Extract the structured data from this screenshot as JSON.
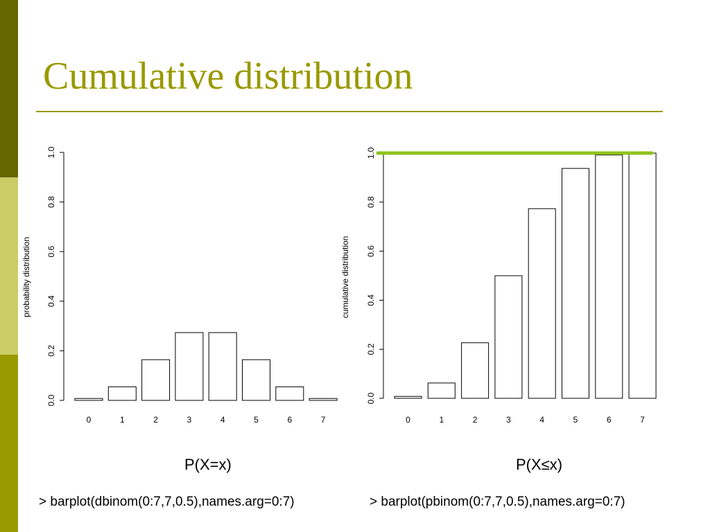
{
  "slide": {
    "title": "Cumulative distribution",
    "colors": {
      "accent": "#999900",
      "sidebar_dark": "#666600",
      "sidebar_light": "#cccc66",
      "sidebar_mid": "#999900",
      "rule": "#999900",
      "highlight_line": "#8fc31f"
    }
  },
  "captions": {
    "left": "P(X=x)",
    "right": "P(X≤x)"
  },
  "code": {
    "left": "> barplot(dbinom(0:7,7,0.5),names.arg=0:7)",
    "right": "> barplot(pbinom(0:7,7,0.5),names.arg=0:7)"
  },
  "chart_data": [
    {
      "type": "bar",
      "categories": [
        "0",
        "1",
        "2",
        "3",
        "4",
        "5",
        "6",
        "7"
      ],
      "values": [
        0.0078,
        0.0547,
        0.1641,
        0.2734,
        0.2734,
        0.1641,
        0.0547,
        0.0078
      ],
      "ylabel": "probability distribution",
      "xlabel": "",
      "ylim": [
        0,
        1
      ],
      "yticks": [
        "0.0",
        "0.2",
        "0.4",
        "0.6",
        "0.8",
        "1.0"
      ],
      "grid": false
    },
    {
      "type": "bar",
      "categories": [
        "0",
        "1",
        "2",
        "3",
        "4",
        "5",
        "6",
        "7"
      ],
      "values": [
        0.0078,
        0.0625,
        0.2266,
        0.5,
        0.7734,
        0.9375,
        0.9922,
        1.0
      ],
      "ylabel": "cumulative distribution",
      "xlabel": "",
      "ylim": [
        0,
        1
      ],
      "yticks": [
        "0.0",
        "0.2",
        "0.4",
        "0.6",
        "0.8",
        "1.0"
      ],
      "grid": false,
      "reference_line": {
        "y": 1.0,
        "color": "#8fc31f"
      }
    }
  ]
}
